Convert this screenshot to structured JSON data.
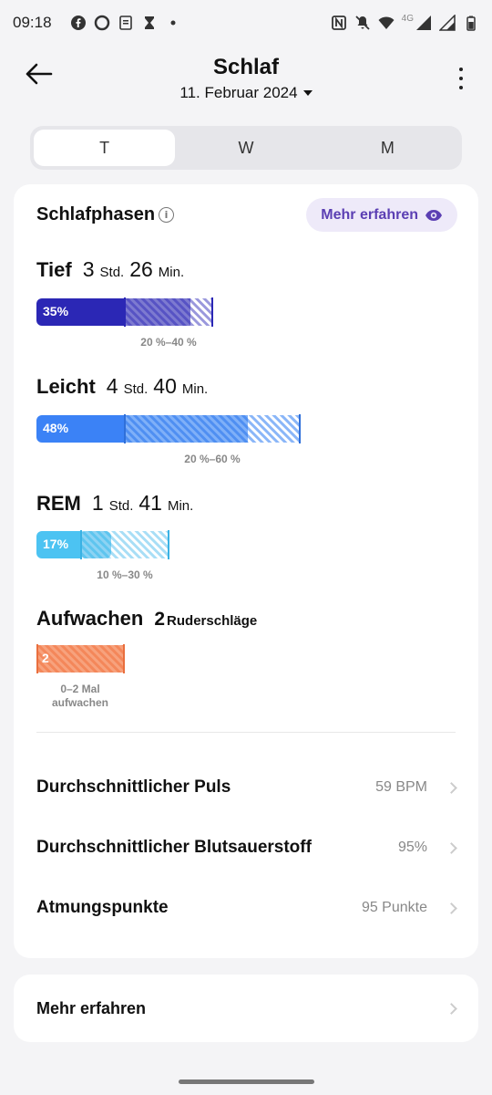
{
  "status": {
    "time": "09:18",
    "network": "4G"
  },
  "header": {
    "title": "Schlaf",
    "date": "11. Februar 2024"
  },
  "tabs": [
    {
      "label": "T"
    },
    {
      "label": "W"
    },
    {
      "label": "M"
    }
  ],
  "phases": {
    "title": "Schlafphasen",
    "learn_more": "Mehr erfahren",
    "deep": {
      "name": "Tief",
      "hours": "3",
      "hours_unit": "Std.",
      "minutes": "26",
      "minutes_unit": "Min.",
      "percent": "35%",
      "range": "20 %–40 %",
      "color": "#2b27b5"
    },
    "light": {
      "name": "Leicht",
      "hours": "4",
      "hours_unit": "Std.",
      "minutes": "40",
      "minutes_unit": "Min.",
      "percent": "48%",
      "range": "20 %–60 %",
      "color": "#3b82f6"
    },
    "rem": {
      "name": "REM",
      "hours": "1",
      "hours_unit": "Std.",
      "minutes": "41",
      "minutes_unit": "Min.",
      "percent": "17%",
      "range": "10 %–30 %",
      "color": "#4cc3f2"
    },
    "awake": {
      "name": "Aufwachen",
      "count": "2",
      "count_unit": "Ruderschläge",
      "bar_value": "2",
      "range_line1": "0–2 Mal",
      "range_line2": "aufwachen",
      "color": "#f4875a"
    }
  },
  "metrics": [
    {
      "label": "Durchschnittlicher Puls",
      "value": "59 BPM"
    },
    {
      "label": "Durchschnittlicher Blutsauerstoff",
      "value": "95%"
    },
    {
      "label": "Atmungspunkte",
      "value": "95 Punkte"
    }
  ],
  "footer_card": {
    "label": "Mehr erfahren"
  }
}
